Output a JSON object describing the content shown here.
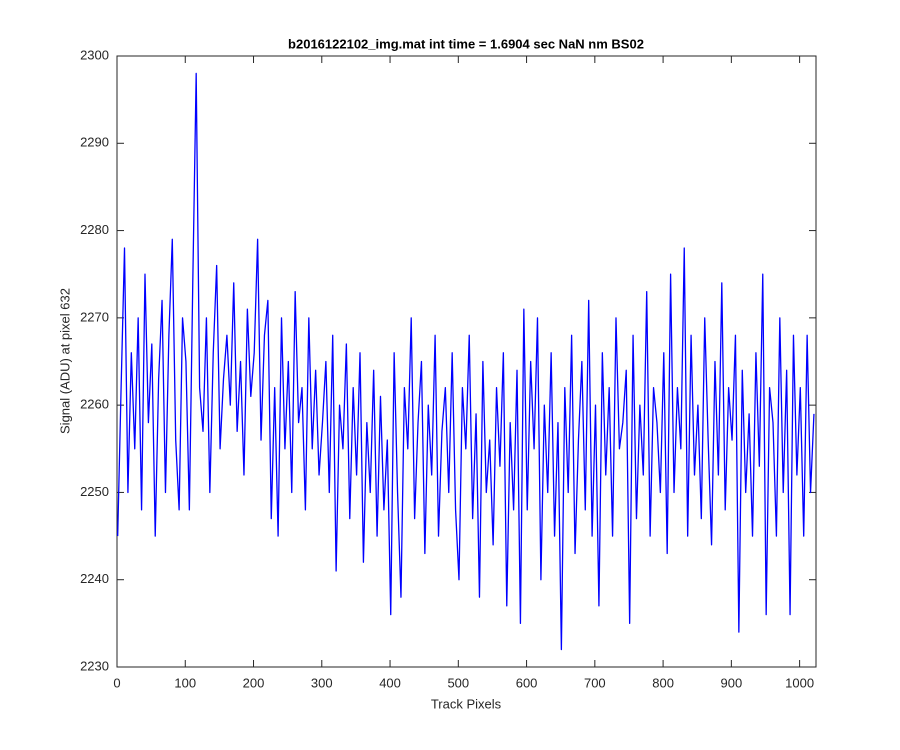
{
  "chart_data": {
    "type": "line",
    "title": "b2016122102_img.mat int time = 1.6904 sec  NaN nm BS02",
    "x_label": "Track Pixels",
    "y_label": "Signal (ADU) at pixel 632",
    "xlim": [
      0,
      1024
    ],
    "ylim": [
      2230,
      2300
    ],
    "xticks": [
      0,
      100,
      200,
      300,
      400,
      500,
      600,
      700,
      800,
      900,
      1000
    ],
    "yticks": [
      2230,
      2240,
      2250,
      2260,
      2270,
      2280,
      2290,
      2300
    ],
    "grid": false,
    "x": [
      1,
      6,
      11,
      16,
      21,
      26,
      31,
      36,
      41,
      46,
      51,
      56,
      61,
      66,
      71,
      76,
      81,
      86,
      91,
      96,
      101,
      106,
      111,
      116,
      121,
      126,
      131,
      136,
      141,
      146,
      151,
      156,
      161,
      166,
      171,
      176,
      181,
      186,
      191,
      196,
      201,
      206,
      211,
      216,
      221,
      226,
      231,
      236,
      241,
      246,
      251,
      256,
      261,
      266,
      271,
      276,
      281,
      286,
      291,
      296,
      301,
      306,
      311,
      316,
      321,
      326,
      331,
      336,
      341,
      346,
      351,
      356,
      361,
      366,
      371,
      376,
      381,
      386,
      391,
      396,
      401,
      406,
      411,
      416,
      421,
      426,
      431,
      436,
      441,
      446,
      451,
      456,
      461,
      466,
      471,
      476,
      481,
      486,
      491,
      496,
      501,
      506,
      511,
      516,
      521,
      526,
      531,
      536,
      541,
      546,
      551,
      556,
      561,
      566,
      571,
      576,
      581,
      586,
      591,
      596,
      601,
      606,
      611,
      616,
      621,
      626,
      631,
      636,
      641,
      646,
      651,
      656,
      661,
      666,
      671,
      676,
      681,
      686,
      691,
      696,
      701,
      706,
      711,
      716,
      721,
      726,
      731,
      736,
      741,
      746,
      751,
      756,
      761,
      766,
      771,
      776,
      781,
      786,
      791,
      796,
      801,
      806,
      811,
      816,
      821,
      826,
      831,
      836,
      841,
      846,
      851,
      856,
      861,
      866,
      871,
      876,
      881,
      886,
      891,
      896,
      901,
      906,
      911,
      916,
      921,
      926,
      931,
      936,
      941,
      946,
      951,
      956,
      961,
      966,
      971,
      976,
      981,
      986,
      991,
      996,
      1001,
      1006,
      1011,
      1016,
      1021
    ],
    "series": [
      {
        "color": "#0000ff",
        "values": [
          2245,
          2262,
          2278,
          2250,
          2266,
          2255,
          2270,
          2248,
          2275,
          2258,
          2267,
          2245,
          2263,
          2272,
          2250,
          2268,
          2279,
          2256,
          2248,
          2270,
          2265,
          2248,
          2274,
          2298,
          2262,
          2257,
          2270,
          2250,
          2266,
          2276,
          2255,
          2263,
          2268,
          2260,
          2274,
          2257,
          2265,
          2252,
          2271,
          2261,
          2266,
          2279,
          2256,
          2268,
          2272,
          2247,
          2262,
          2245,
          2270,
          2255,
          2265,
          2250,
          2273,
          2258,
          2262,
          2248,
          2270,
          2255,
          2264,
          2252,
          2258,
          2265,
          2250,
          2268,
          2241,
          2260,
          2255,
          2267,
          2247,
          2262,
          2252,
          2266,
          2242,
          2258,
          2250,
          2264,
          2245,
          2261,
          2248,
          2256,
          2236,
          2266,
          2250,
          2238,
          2262,
          2255,
          2270,
          2247,
          2258,
          2265,
          2243,
          2260,
          2252,
          2268,
          2245,
          2257,
          2262,
          2250,
          2266,
          2248,
          2240,
          2262,
          2255,
          2268,
          2247,
          2259,
          2238,
          2265,
          2250,
          2256,
          2244,
          2262,
          2253,
          2266,
          2237,
          2258,
          2248,
          2264,
          2235,
          2271,
          2248,
          2265,
          2255,
          2270,
          2240,
          2260,
          2250,
          2266,
          2245,
          2258,
          2232,
          2262,
          2250,
          2268,
          2243,
          2256,
          2265,
          2248,
          2272,
          2245,
          2260,
          2237,
          2266,
          2252,
          2262,
          2245,
          2270,
          2255,
          2258,
          2264,
          2235,
          2268,
          2247,
          2260,
          2252,
          2273,
          2245,
          2262,
          2258,
          2250,
          2266,
          2243,
          2275,
          2250,
          2262,
          2255,
          2278,
          2245,
          2268,
          2252,
          2260,
          2247,
          2270,
          2256,
          2244,
          2265,
          2252,
          2274,
          2248,
          2262,
          2256,
          2268,
          2234,
          2264,
          2250,
          2259,
          2245,
          2266,
          2253,
          2275,
          2236,
          2262,
          2258,
          2245,
          2270,
          2250,
          2264,
          2236,
          2268,
          2252,
          2262,
          2245,
          2268,
          2250,
          2259
        ]
      }
    ]
  }
}
